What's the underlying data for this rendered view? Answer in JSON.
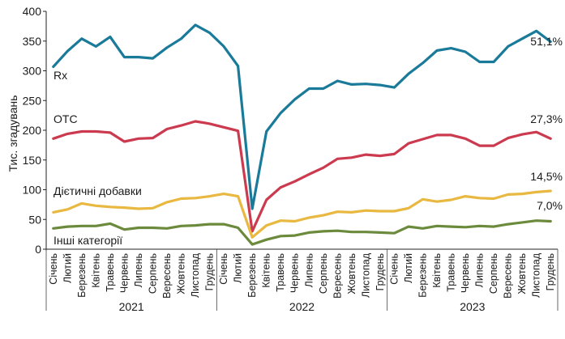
{
  "chart_data": {
    "type": "line",
    "ylabel": "Тис. згадувань",
    "ylim": [
      0,
      400
    ],
    "yticks": [
      0,
      50,
      100,
      150,
      200,
      250,
      300,
      350,
      400
    ],
    "grid": false,
    "x": [
      "Січень",
      "Лютий",
      "Березень",
      "Квітень",
      "Травень",
      "Червень",
      "Липень",
      "Серпень",
      "Вересень",
      "Жовтень",
      "Листопад",
      "Грудень",
      "Січень",
      "Лютий",
      "Березень",
      "Квітень",
      "Травень",
      "Червень",
      "Липень",
      "Серпень",
      "Вересень",
      "Жовтень",
      "Листопад",
      "Грудень",
      "Січень",
      "Лютий",
      "Березень",
      "Квітень",
      "Травень",
      "Червень",
      "Липень",
      "Серпень",
      "Вересень",
      "Жовтень",
      "Листопад",
      "Грудень"
    ],
    "years": [
      "2021",
      "2022",
      "2023"
    ],
    "series": [
      {
        "name": "Rx",
        "color": "#1a7a99",
        "end_label": "51,1%",
        "values": [
          307,
          333,
          354,
          341,
          357,
          323,
          323,
          321,
          339,
          354,
          377,
          364,
          341,
          308,
          68,
          198,
          229,
          252,
          270,
          270,
          283,
          277,
          278,
          276,
          272,
          295,
          313,
          334,
          338,
          332,
          315,
          315,
          341,
          354,
          367,
          349
        ]
      },
      {
        "name": "OTC",
        "color": "#cc3a4f",
        "end_label": "27,3%",
        "values": [
          186,
          194,
          198,
          198,
          196,
          181,
          186,
          187,
          202,
          208,
          215,
          211,
          205,
          199,
          30,
          83,
          104,
          114,
          126,
          137,
          152,
          154,
          159,
          157,
          160,
          178,
          185,
          192,
          192,
          186,
          174,
          174,
          187,
          193,
          197,
          186
        ]
      },
      {
        "name": "Дієтичні добавки",
        "color": "#e8b840",
        "end_label": "14,5%",
        "values": [
          62,
          67,
          77,
          73,
          71,
          70,
          68,
          69,
          79,
          85,
          86,
          89,
          93,
          89,
          20,
          40,
          48,
          47,
          53,
          57,
          63,
          62,
          65,
          64,
          64,
          69,
          84,
          80,
          83,
          89,
          86,
          85,
          92,
          93,
          96,
          98
        ]
      },
      {
        "name": "Інші категорії",
        "color": "#6b8a3c",
        "end_label": "7,0%",
        "values": [
          35,
          38,
          39,
          39,
          43,
          33,
          36,
          36,
          35,
          39,
          40,
          42,
          42,
          36,
          8,
          16,
          22,
          23,
          28,
          30,
          31,
          29,
          29,
          28,
          27,
          38,
          35,
          39,
          38,
          37,
          39,
          38,
          42,
          45,
          48,
          47
        ]
      }
    ]
  }
}
